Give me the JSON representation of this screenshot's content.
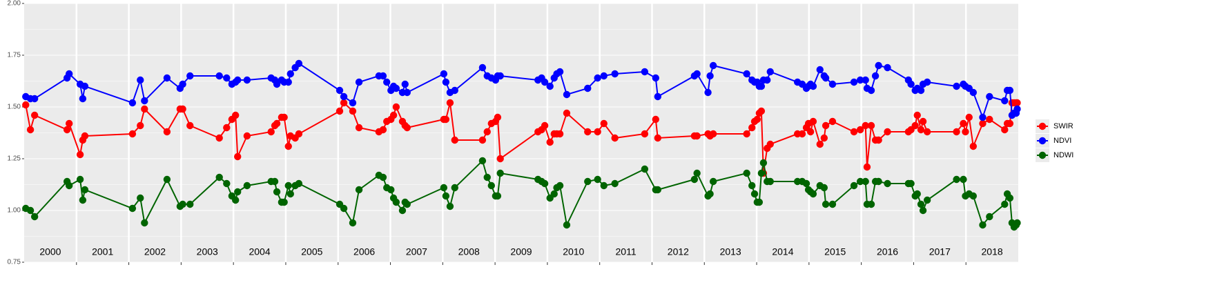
{
  "chart_data": {
    "type": "line",
    "x": [
      2000.03,
      2000.12,
      2000.2,
      2000.82,
      2000.86,
      2001.07,
      2001.12,
      2001.16,
      2002.07,
      2002.22,
      2002.3,
      2002.73,
      2002.98,
      2003.03,
      2003.17,
      2003.73,
      2003.87,
      2003.97,
      2004.04,
      2004.08,
      2004.26,
      2004.72,
      2004.79,
      2004.83,
      2004.92,
      2004.97,
      2005.05,
      2005.09,
      2005.18,
      2005.25,
      2006.03,
      2006.11,
      2006.28,
      2006.4,
      2006.78,
      2006.86,
      2006.93,
      2007.01,
      2007.06,
      2007.11,
      2007.23,
      2007.28,
      2007.32,
      2008.02,
      2008.06,
      2008.14,
      2008.23,
      2008.76,
      2008.85,
      2008.93,
      2009.01,
      2009.05,
      2009.1,
      2009.82,
      2009.89,
      2009.95,
      2010.05,
      2010.13,
      2010.18,
      2010.24,
      2010.37,
      2010.77,
      2010.96,
      2011.08,
      2011.29,
      2011.86,
      2012.07,
      2012.11,
      2012.81,
      2012.86,
      2013.07,
      2013.11,
      2013.17,
      2013.81,
      2013.91,
      2013.96,
      2014.01,
      2014.05,
      2014.09,
      2014.13,
      2014.2,
      2014.26,
      2014.78,
      2014.87,
      2014.95,
      2014.99,
      2015.03,
      2015.08,
      2015.21,
      2015.29,
      2015.32,
      2015.45,
      2015.86,
      2015.98,
      2016.08,
      2016.11,
      2016.19,
      2016.27,
      2016.33,
      2016.5,
      2016.9,
      2016.95,
      2017.03,
      2017.07,
      2017.14,
      2017.18,
      2017.26,
      2017.82,
      2017.95,
      2017.99,
      2018.06,
      2018.14,
      2018.32,
      2018.45,
      2018.74,
      2018.79,
      2018.84,
      2018.88,
      2018.92,
      2018.96,
      2018.98
    ],
    "series": [
      {
        "name": "SWIR",
        "color": "#ff0000",
        "values": [
          1.51,
          1.39,
          1.46,
          1.39,
          1.42,
          1.27,
          1.34,
          1.36,
          1.37,
          1.41,
          1.49,
          1.38,
          1.49,
          1.49,
          1.41,
          1.35,
          1.4,
          1.44,
          1.46,
          1.26,
          1.36,
          1.38,
          1.41,
          1.42,
          1.45,
          1.45,
          1.31,
          1.36,
          1.35,
          1.37,
          1.48,
          1.52,
          1.48,
          1.4,
          1.38,
          1.39,
          1.43,
          1.44,
          1.46,
          1.5,
          1.43,
          1.41,
          1.4,
          1.44,
          1.44,
          1.52,
          1.34,
          1.34,
          1.38,
          1.42,
          1.43,
          1.45,
          1.25,
          1.38,
          1.39,
          1.41,
          1.33,
          1.37,
          1.37,
          1.37,
          1.47,
          1.38,
          1.38,
          1.42,
          1.35,
          1.37,
          1.44,
          1.35,
          1.36,
          1.36,
          1.37,
          1.36,
          1.37,
          1.37,
          1.4,
          1.43,
          1.44,
          1.47,
          1.48,
          1.18,
          1.3,
          1.32,
          1.37,
          1.37,
          1.4,
          1.42,
          1.38,
          1.43,
          1.32,
          1.35,
          1.41,
          1.43,
          1.38,
          1.39,
          1.41,
          1.21,
          1.41,
          1.34,
          1.34,
          1.38,
          1.38,
          1.39,
          1.41,
          1.46,
          1.39,
          1.43,
          1.38,
          1.38,
          1.42,
          1.38,
          1.45,
          1.31,
          1.42,
          1.44,
          1.39,
          1.42,
          1.42,
          1.52,
          1.52,
          1.52,
          1.52
        ]
      },
      {
        "name": "NDVI",
        "color": "#0000ff",
        "values": [
          1.55,
          1.54,
          1.54,
          1.64,
          1.66,
          1.61,
          1.54,
          1.6,
          1.52,
          1.63,
          1.53,
          1.64,
          1.59,
          1.61,
          1.65,
          1.65,
          1.64,
          1.61,
          1.62,
          1.63,
          1.63,
          1.64,
          1.63,
          1.61,
          1.63,
          1.62,
          1.62,
          1.66,
          1.69,
          1.71,
          1.58,
          1.55,
          1.52,
          1.62,
          1.65,
          1.65,
          1.62,
          1.58,
          1.6,
          1.59,
          1.57,
          1.61,
          1.57,
          1.66,
          1.62,
          1.57,
          1.58,
          1.69,
          1.65,
          1.64,
          1.63,
          1.65,
          1.65,
          1.63,
          1.64,
          1.62,
          1.6,
          1.64,
          1.66,
          1.67,
          1.56,
          1.59,
          1.64,
          1.65,
          1.66,
          1.67,
          1.64,
          1.55,
          1.65,
          1.66,
          1.57,
          1.65,
          1.7,
          1.66,
          1.63,
          1.62,
          1.62,
          1.6,
          1.6,
          1.63,
          1.63,
          1.67,
          1.62,
          1.61,
          1.59,
          1.6,
          1.61,
          1.6,
          1.68,
          1.65,
          1.64,
          1.61,
          1.62,
          1.63,
          1.63,
          1.59,
          1.58,
          1.65,
          1.7,
          1.69,
          1.63,
          1.61,
          1.58,
          1.59,
          1.58,
          1.61,
          1.62,
          1.6,
          1.61,
          1.6,
          1.59,
          1.57,
          1.45,
          1.55,
          1.53,
          1.58,
          1.58,
          1.46,
          1.47,
          1.47,
          1.49
        ]
      },
      {
        "name": "NDWI",
        "color": "#006400",
        "values": [
          1.01,
          1.0,
          0.97,
          1.14,
          1.12,
          1.15,
          1.05,
          1.1,
          1.01,
          1.06,
          0.94,
          1.15,
          1.02,
          1.03,
          1.03,
          1.16,
          1.13,
          1.07,
          1.05,
          1.09,
          1.12,
          1.14,
          1.14,
          1.09,
          1.04,
          1.04,
          1.12,
          1.08,
          1.12,
          1.13,
          1.03,
          1.01,
          0.94,
          1.1,
          1.17,
          1.16,
          1.11,
          1.1,
          1.06,
          1.04,
          1.0,
          1.04,
          1.03,
          1.11,
          1.07,
          1.02,
          1.11,
          1.24,
          1.16,
          1.12,
          1.07,
          1.07,
          1.18,
          1.15,
          1.14,
          1.13,
          1.06,
          1.08,
          1.11,
          1.12,
          0.93,
          1.14,
          1.15,
          1.12,
          1.13,
          1.2,
          1.1,
          1.1,
          1.15,
          1.18,
          1.07,
          1.08,
          1.14,
          1.18,
          1.12,
          1.08,
          1.04,
          1.04,
          1.18,
          1.23,
          1.14,
          1.14,
          1.14,
          1.14,
          1.13,
          1.1,
          1.09,
          1.08,
          1.12,
          1.11,
          1.03,
          1.03,
          1.12,
          1.14,
          1.14,
          1.03,
          1.03,
          1.14,
          1.14,
          1.13,
          1.13,
          1.13,
          1.07,
          1.08,
          1.03,
          1.0,
          1.05,
          1.15,
          1.15,
          1.07,
          1.08,
          1.07,
          0.93,
          0.97,
          1.03,
          1.08,
          1.06,
          0.94,
          0.92,
          0.93,
          0.94
        ]
      }
    ],
    "xlim": [
      2000,
      2019
    ],
    "xticks": [
      2001,
      2002,
      2003,
      2004,
      2005,
      2006,
      2007,
      2008,
      2009,
      2010,
      2011,
      2012,
      2013,
      2014,
      2015,
      2016,
      2017,
      2018
    ],
    "year_labels": [
      "2000",
      "2001",
      "2002",
      "2003",
      "2004",
      "2005",
      "2006",
      "2007",
      "2008",
      "2009",
      "2010",
      "2011",
      "2012",
      "2013",
      "2014",
      "2015",
      "2016",
      "2017",
      "2018"
    ],
    "ylim": [
      0.75,
      2.0
    ],
    "yticks": [
      0.75,
      {
        "value": 1,
        "label": "1.00"
      },
      1.25,
      {
        "value": 1.5,
        "label": "1.50"
      },
      1.75,
      {
        "value": 2,
        "label": "2.00"
      }
    ],
    "grid": true,
    "legend": "right"
  }
}
